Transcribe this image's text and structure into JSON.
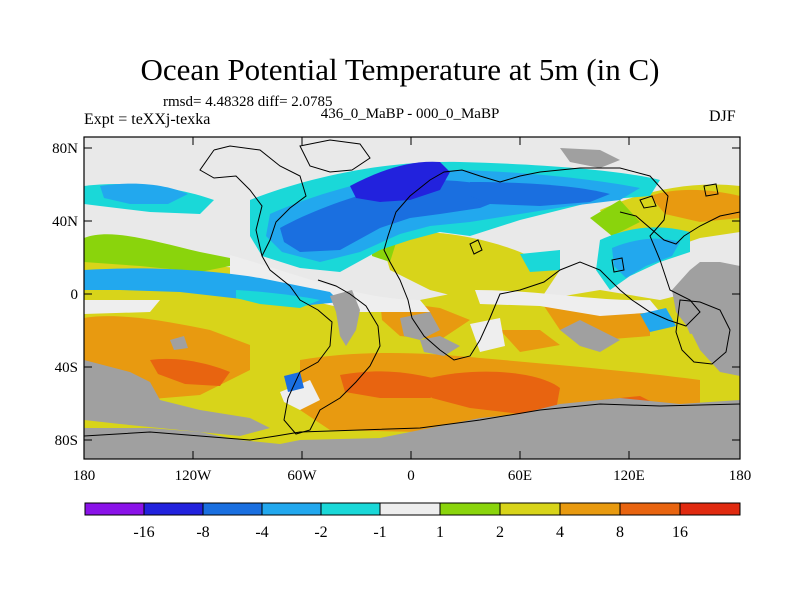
{
  "title": "Ocean Potential Temperature at 5m (in C)",
  "stats": "rmsd= 4.48328 diff= 2.0785",
  "experiment": "Expt = teXXj-texka",
  "comparison": "436_0_MaBP - 000_0_MaBP",
  "season": "DJF",
  "lat_ticks": [
    "80N",
    "40N",
    "0",
    "40S",
    "80S"
  ],
  "lon_ticks": [
    "180",
    "120W",
    "60W",
    "0",
    "60E",
    "120E",
    "180"
  ],
  "colorbar": {
    "labels": [
      "-16",
      "-8",
      "-4",
      "-2",
      "-1",
      "1",
      "2",
      "4",
      "8",
      "16"
    ],
    "colors": [
      "#8a12e8",
      "#2222dd",
      "#1a6fe0",
      "#22a8ee",
      "#1ad8d8",
      "#eeeeee",
      "#8ad40c",
      "#d8d41a",
      "#e89a10",
      "#e86410",
      "#e02a10"
    ]
  },
  "land_color": "#a0a0a0"
}
